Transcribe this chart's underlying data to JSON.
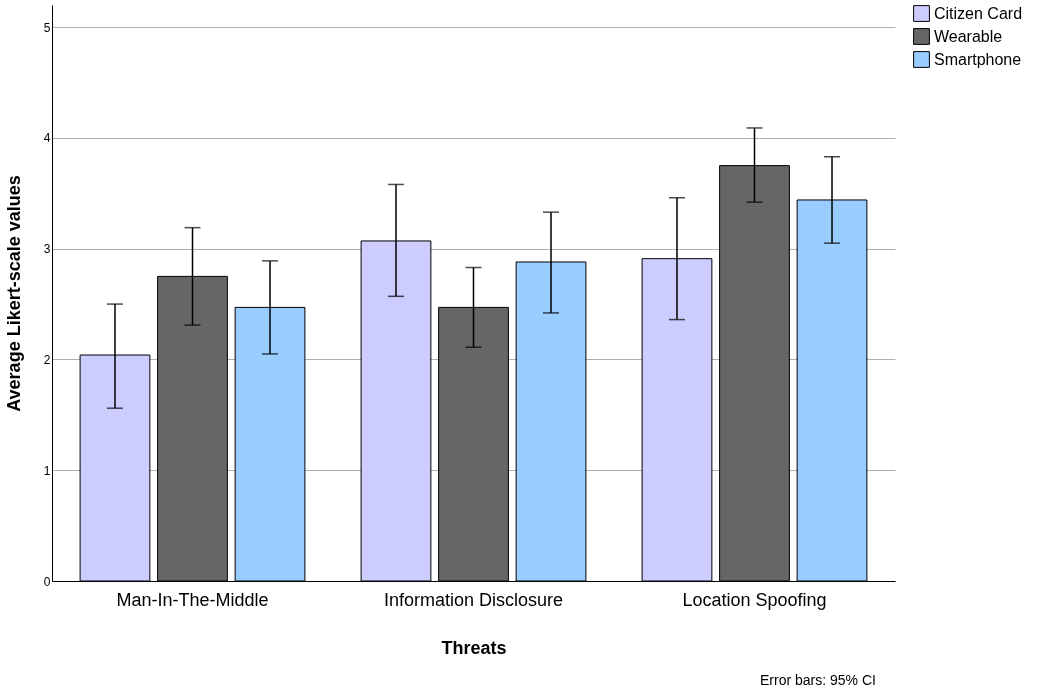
{
  "chart_data": {
    "type": "bar",
    "xlabel": "Threats",
    "ylabel": "Average Likert-scale values",
    "categories": [
      "Man-In-The-Middle",
      "Information Disclosure",
      "Location Spoofing"
    ],
    "series": [
      {
        "name": "Citizen Card",
        "color": "#ccccff",
        "values": [
          2.04,
          3.07,
          2.91
        ],
        "errors": [
          [
            1.56,
            2.5
          ],
          [
            2.57,
            3.58
          ],
          [
            2.36,
            3.46
          ]
        ]
      },
      {
        "name": "Wearable",
        "color": "#666666",
        "values": [
          2.75,
          2.47,
          3.75
        ],
        "errors": [
          [
            2.31,
            3.19
          ],
          [
            2.11,
            2.83
          ],
          [
            3.42,
            4.09
          ]
        ]
      },
      {
        "name": "Smartphone",
        "color": "#99ccff",
        "values": [
          2.47,
          2.88,
          3.44
        ],
        "errors": [
          [
            2.05,
            2.89
          ],
          [
            2.42,
            3.33
          ],
          [
            3.05,
            3.83
          ]
        ]
      }
    ],
    "ylim": [
      0,
      5.2
    ],
    "yticks": [
      0,
      1,
      2,
      3,
      4,
      5
    ],
    "grid": "y",
    "legend": "top right",
    "annotations": [
      "Error bars: 95% CI"
    ]
  }
}
